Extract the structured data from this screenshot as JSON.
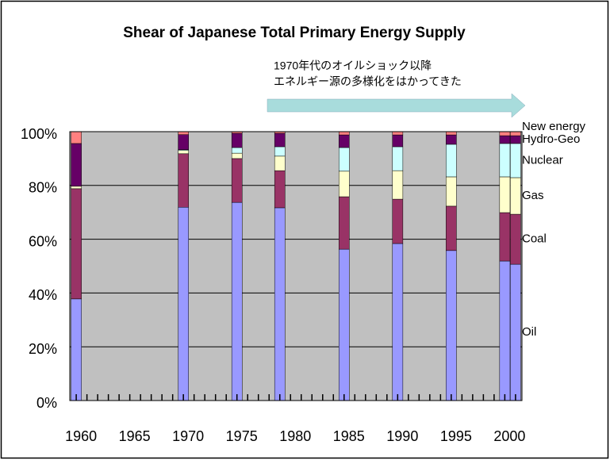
{
  "chart_data": {
    "type": "stacked_bar",
    "title": "Shear of Japanese Total Primary Energy Supply",
    "annotation": [
      "1970年代のオイルショック以降",
      "エネルギー源の多様化をはかってきた"
    ],
    "x": [
      1960,
      1970,
      1975,
      1979,
      1985,
      1990,
      1995,
      2000,
      2001
    ],
    "series": [
      {
        "name": "Oil",
        "color": "#9999ff",
        "values": [
          37.8,
          71.9,
          73.7,
          71.7,
          56.3,
          58.4,
          55.8,
          51.9,
          50.7
        ]
      },
      {
        "name": "Coal",
        "color": "#993366",
        "values": [
          41,
          19.9,
          16.3,
          13.8,
          19.5,
          16.5,
          16.5,
          18,
          18.6
        ]
      },
      {
        "name": "Gas",
        "color": "#ffffcc",
        "values": [
          0.9,
          1.2,
          2,
          5.4,
          9.5,
          10.6,
          10.9,
          13.3,
          13.6
        ]
      },
      {
        "name": "Nuclear",
        "color": "#ccffff",
        "values": [
          0,
          0.3,
          2.1,
          3.5,
          8.8,
          8.9,
          12.1,
          12.4,
          12.7
        ]
      },
      {
        "name": "Hydro-Geo",
        "color": "#660066",
        "values": [
          15.9,
          5.6,
          5.3,
          5,
          4.7,
          4.4,
          3.5,
          2.9,
          2.9
        ]
      },
      {
        "name": "New energy",
        "color": "#ff8080",
        "values": [
          4.4,
          1.1,
          0.6,
          0.6,
          1.2,
          1.2,
          1.2,
          1.5,
          1.5
        ]
      }
    ],
    "xlim": [
      1959.4,
      2001.6
    ],
    "xticks": [
      1960,
      1965,
      1970,
      1975,
      1980,
      1985,
      1990,
      1995,
      2000
    ],
    "xminorticks": [
      1960,
      1961,
      1962,
      1963,
      1964,
      1965,
      1966,
      1967,
      1968,
      1969,
      1970,
      1971,
      1972,
      1973,
      1974,
      1975,
      1976,
      1977,
      1978,
      1979,
      1980,
      1981,
      1982,
      1983,
      1984,
      1985,
      1986,
      1987,
      1988,
      1989,
      1990,
      1991,
      1992,
      1993,
      1994,
      1995,
      1996,
      1997,
      1998,
      1999,
      2000,
      2001
    ],
    "ylim": [
      0,
      100
    ],
    "yticks": [
      {
        "value": 0,
        "label": "0%"
      },
      {
        "value": 20,
        "label": "20%"
      },
      {
        "value": 40,
        "label": "40%"
      },
      {
        "value": 60,
        "label": "60%"
      },
      {
        "value": 80,
        "label": "80%"
      },
      {
        "value": 100,
        "label": "100%"
      }
    ],
    "grid": true,
    "plot_background": "#c0c0c0"
  }
}
